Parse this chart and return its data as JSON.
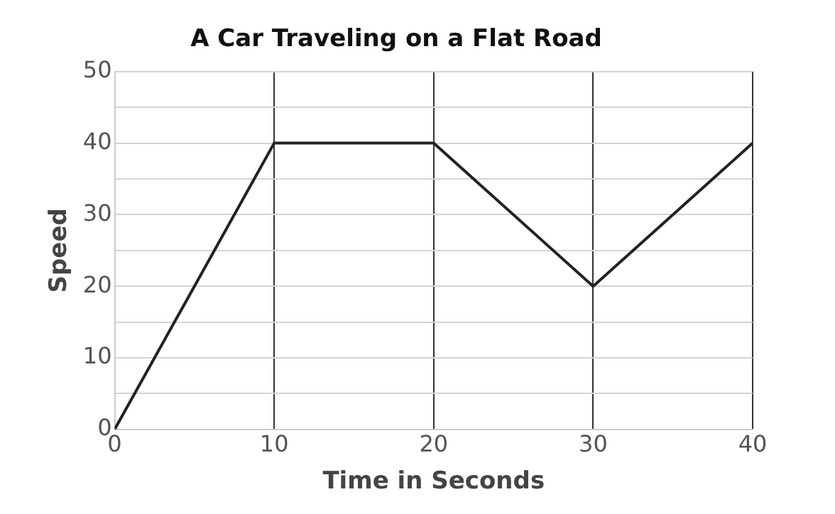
{
  "chart_data": {
    "type": "line",
    "title": "A Car Traveling on a Flat Road",
    "xlabel": "Time in Seconds",
    "ylabel": "Speed",
    "x": [
      0,
      10,
      20,
      30,
      40
    ],
    "series": [
      {
        "color": "#222222",
        "values": [
          0,
          40,
          40,
          20,
          40
        ]
      }
    ],
    "xlim": [
      0,
      40
    ],
    "xticks": [
      0,
      10,
      20,
      30,
      40
    ],
    "ylim": [
      0,
      50
    ],
    "yticks": [
      0,
      {
        "value": 5,
        "label": null
      },
      10,
      {
        "value": 15,
        "label": null
      },
      20,
      {
        "value": 25,
        "label": null
      },
      30,
      {
        "value": 35,
        "label": null
      },
      40,
      {
        "value": 45,
        "label": null
      },
      50
    ],
    "grid": true,
    "legend": false,
    "marker": "none",
    "line_style": "solid"
  }
}
